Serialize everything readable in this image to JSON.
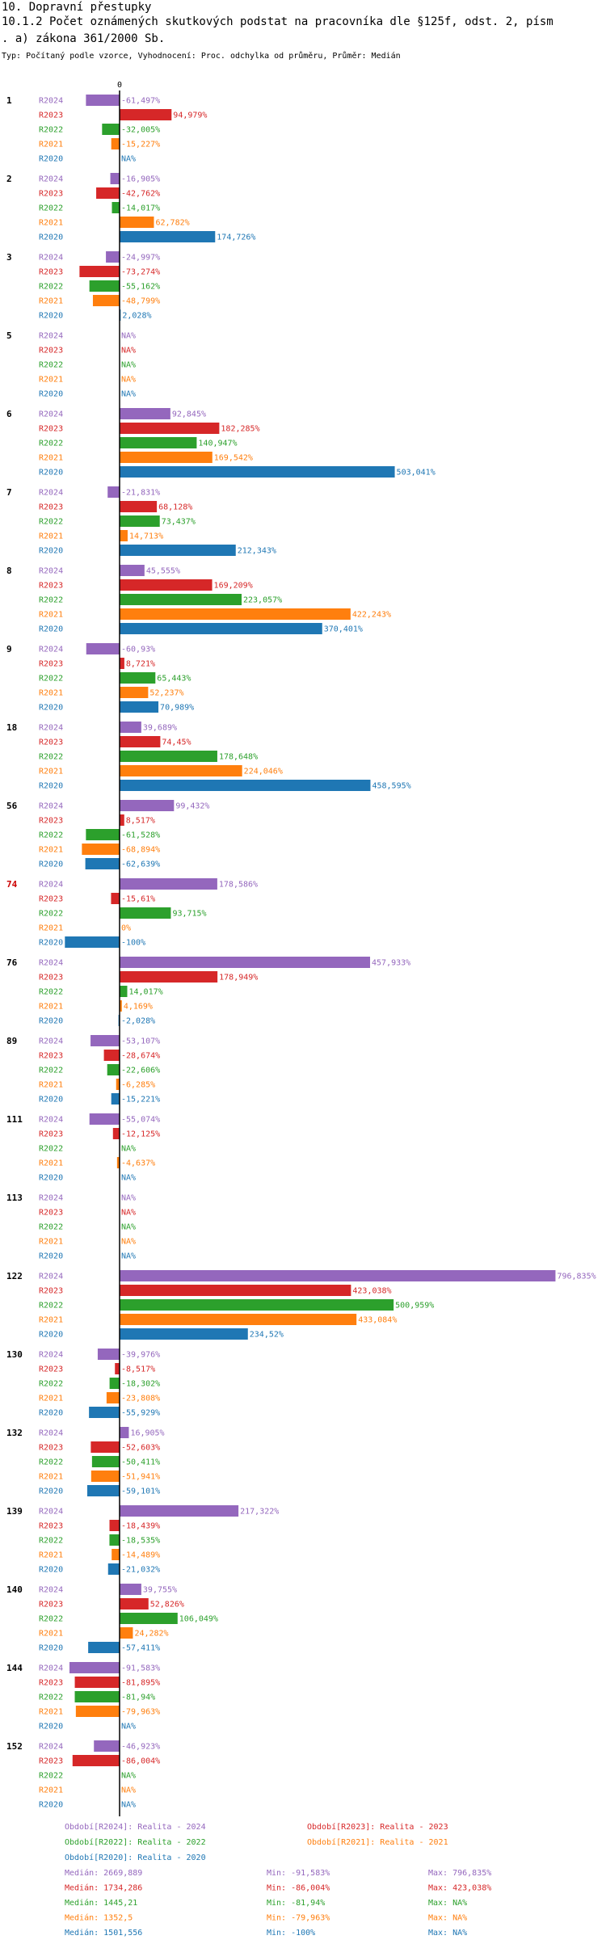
{
  "title_line1": "10. Dopravní přestupky",
  "title_line2": "10.1.2 Počet oznámených skutkových podstat na pracovníka dle §125f, odst. 2, písm",
  "title_line3": ". a) zákona 361/2000 Sb.",
  "subtitle": "Typ: Počítaný podle vzorce, Vyhodnocení: Proc. odchylka od průměru, Průměr: Medián",
  "colors": {
    "R2024": "#9467bd",
    "R2023": "#d62728",
    "R2022": "#2ca02c",
    "R2021": "#ff7f0e",
    "R2020": "#1f77b4",
    "highlight": "#cc0000"
  },
  "chart_data": {
    "type": "bar",
    "orientation": "horizontal",
    "zero_label": "0",
    "series_names": [
      "R2024",
      "R2023",
      "R2022",
      "R2021",
      "R2020"
    ],
    "groups": [
      {
        "id": "1",
        "values": [
          -61.497,
          94.979,
          -32.005,
          -15.227,
          null
        ],
        "labels": [
          "-61,497%",
          "94,979%",
          "-32,005%",
          "-15,227%",
          "NA%"
        ]
      },
      {
        "id": "2",
        "values": [
          -16.905,
          -42.762,
          -14.017,
          62.782,
          174.726
        ],
        "labels": [
          "-16,905%",
          "-42,762%",
          "-14,017%",
          "62,782%",
          "174,726%"
        ]
      },
      {
        "id": "3",
        "values": [
          -24.997,
          -73.274,
          -55.162,
          -48.799,
          2.028
        ],
        "labels": [
          "-24,997%",
          "-73,274%",
          "-55,162%",
          "-48,799%",
          "2,028%"
        ]
      },
      {
        "id": "5",
        "values": [
          null,
          null,
          null,
          null,
          null
        ],
        "labels": [
          "NA%",
          "NA%",
          "NA%",
          "NA%",
          "NA%"
        ]
      },
      {
        "id": "6",
        "values": [
          92.845,
          182.285,
          140.947,
          169.542,
          503.041
        ],
        "labels": [
          "92,845%",
          "182,285%",
          "140,947%",
          "169,542%",
          "503,041%"
        ]
      },
      {
        "id": "7",
        "values": [
          -21.831,
          68.128,
          73.437,
          14.713,
          212.343
        ],
        "labels": [
          "-21,831%",
          "68,128%",
          "73,437%",
          "14,713%",
          "212,343%"
        ]
      },
      {
        "id": "8",
        "values": [
          45.555,
          169.209,
          223.057,
          422.243,
          370.401
        ],
        "labels": [
          "45,555%",
          "169,209%",
          "223,057%",
          "422,243%",
          "370,401%"
        ]
      },
      {
        "id": "9",
        "values": [
          -60.93,
          8.721,
          65.443,
          52.237,
          70.989
        ],
        "labels": [
          "-60,93%",
          "8,721%",
          "65,443%",
          "52,237%",
          "70,989%"
        ]
      },
      {
        "id": "18",
        "values": [
          39.689,
          74.45,
          178.648,
          224.046,
          458.595
        ],
        "labels": [
          "39,689%",
          "74,45%",
          "178,648%",
          "224,046%",
          "458,595%"
        ]
      },
      {
        "id": "56",
        "values": [
          99.432,
          8.517,
          -61.528,
          -68.894,
          -62.639
        ],
        "labels": [
          "99,432%",
          "8,517%",
          "-61,528%",
          "-68,894%",
          "-62,639%"
        ]
      },
      {
        "id": "74",
        "highlight": true,
        "values": [
          178.586,
          -15.61,
          93.715,
          0,
          -100
        ],
        "labels": [
          "178,586%",
          "-15,61%",
          "93,715%",
          "0%",
          "-100%"
        ]
      },
      {
        "id": "76",
        "values": [
          457.933,
          178.949,
          14.017,
          4.169,
          -2.028
        ],
        "labels": [
          "457,933%",
          "178,949%",
          "14,017%",
          "4,169%",
          "-2,028%"
        ]
      },
      {
        "id": "89",
        "values": [
          -53.107,
          -28.674,
          -22.606,
          -6.285,
          -15.221
        ],
        "labels": [
          "-53,107%",
          "-28,674%",
          "-22,606%",
          "-6,285%",
          "-15,221%"
        ]
      },
      {
        "id": "111",
        "values": [
          -55.074,
          -12.125,
          null,
          -4.637,
          null
        ],
        "labels": [
          "-55,074%",
          "-12,125%",
          "NA%",
          "-4,637%",
          "NA%"
        ]
      },
      {
        "id": "113",
        "values": [
          null,
          null,
          null,
          null,
          null
        ],
        "labels": [
          "NA%",
          "NA%",
          "NA%",
          "NA%",
          "NA%"
        ]
      },
      {
        "id": "122",
        "values": [
          796.835,
          423.038,
          500.959,
          433.084,
          234.52
        ],
        "labels": [
          "796,835%",
          "423,038%",
          "500,959%",
          "433,084%",
          "234,52%"
        ]
      },
      {
        "id": "130",
        "values": [
          -39.976,
          -8.517,
          -18.302,
          -23.808,
          -55.929
        ],
        "labels": [
          "-39,976%",
          "-8,517%",
          "-18,302%",
          "-23,808%",
          "-55,929%"
        ]
      },
      {
        "id": "132",
        "values": [
          16.905,
          -52.603,
          -50.411,
          -51.941,
          -59.101
        ],
        "labels": [
          "16,905%",
          "-52,603%",
          "-50,411%",
          "-51,941%",
          "-59,101%"
        ]
      },
      {
        "id": "139",
        "values": [
          217.322,
          -18.439,
          -18.535,
          -14.489,
          -21.032
        ],
        "labels": [
          "217,322%",
          "-18,439%",
          "-18,535%",
          "-14,489%",
          "-21,032%"
        ]
      },
      {
        "id": "140",
        "values": [
          39.755,
          52.826,
          106.049,
          24.282,
          -57.411
        ],
        "labels": [
          "39,755%",
          "52,826%",
          "106,049%",
          "24,282%",
          "-57,411%"
        ]
      },
      {
        "id": "144",
        "values": [
          -91.583,
          -81.895,
          -81.94,
          -79.963,
          null
        ],
        "labels": [
          "-91,583%",
          "-81,895%",
          "-81,94%",
          "-79,963%",
          "NA%"
        ]
      },
      {
        "id": "152",
        "values": [
          -46.923,
          -86.004,
          null,
          null,
          null
        ],
        "labels": [
          "-46,923%",
          "-86,004%",
          "NA%",
          "NA%",
          "NA%"
        ]
      }
    ],
    "legend": [
      {
        "key": "R2024",
        "text": "Období[R2024]: Realita - 2024"
      },
      {
        "key": "R2023",
        "text": "Období[R2023]: Realita - 2023"
      },
      {
        "key": "R2022",
        "text": "Období[R2022]: Realita - 2022"
      },
      {
        "key": "R2021",
        "text": "Období[R2021]: Realita - 2021"
      },
      {
        "key": "R2020",
        "text": "Období[R2020]: Realita - 2020"
      }
    ],
    "stats": [
      {
        "key": "R2024",
        "median": "Medián: 2669,889",
        "min": "Min: -91,583%",
        "max": "Max: 796,835%"
      },
      {
        "key": "R2023",
        "median": "Medián: 1734,286",
        "min": "Min: -86,004%",
        "max": "Max: 423,038%"
      },
      {
        "key": "R2022",
        "median": "Medián: 1445,21",
        "min": "Min: -81,94%",
        "max": "Max: NA%"
      },
      {
        "key": "R2021",
        "median": "Medián: 1352,5",
        "min": "Min: -79,963%",
        "max": "Max: NA%"
      },
      {
        "key": "R2020",
        "median": "Medián: 1501,556",
        "min": "Min: -100%",
        "max": "Max: NA%"
      }
    ]
  }
}
